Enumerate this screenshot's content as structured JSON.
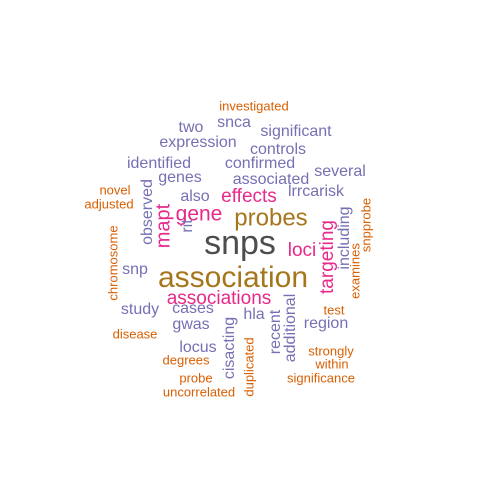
{
  "palette": {
    "dark_grey": "#4d4d4d",
    "gold": "#a6761d",
    "magenta": "#e7298a",
    "purple": "#7570b3",
    "orange": "#d95f02"
  },
  "words": [
    {
      "text": "investigated",
      "color": "orange"
    },
    {
      "text": "snca",
      "color": "purple"
    },
    {
      "text": "two",
      "color": "purple"
    },
    {
      "text": "significant",
      "color": "purple"
    },
    {
      "text": "expression",
      "color": "purple"
    },
    {
      "text": "controls",
      "color": "purple"
    },
    {
      "text": "identified",
      "color": "purple"
    },
    {
      "text": "confirmed",
      "color": "purple"
    },
    {
      "text": "several",
      "color": "purple"
    },
    {
      "text": "genes",
      "color": "purple"
    },
    {
      "text": "associated",
      "color": "purple"
    },
    {
      "text": "novel",
      "color": "orange"
    },
    {
      "text": "also",
      "color": "purple"
    },
    {
      "text": "effects",
      "color": "magenta"
    },
    {
      "text": "lrrcarisk",
      "color": "purple"
    },
    {
      "text": "adjusted",
      "color": "orange"
    },
    {
      "text": "observed",
      "color": "purple"
    },
    {
      "text": "gene",
      "color": "magenta"
    },
    {
      "text": "probes",
      "color": "gold"
    },
    {
      "text": "snpprobe",
      "color": "orange"
    },
    {
      "text": "mapt",
      "color": "magenta"
    },
    {
      "text": "rit",
      "color": "purple"
    },
    {
      "text": "including",
      "color": "purple"
    },
    {
      "text": "chromosome",
      "color": "orange"
    },
    {
      "text": "snps",
      "color": "dark_grey"
    },
    {
      "text": "loci",
      "color": "magenta"
    },
    {
      "text": "targeting",
      "color": "magenta"
    },
    {
      "text": "examines",
      "color": "orange"
    },
    {
      "text": "snp",
      "color": "purple"
    },
    {
      "text": "association",
      "color": "gold"
    },
    {
      "text": "associations",
      "color": "magenta"
    },
    {
      "text": "study",
      "color": "purple"
    },
    {
      "text": "cases",
      "color": "purple"
    },
    {
      "text": "hla",
      "color": "purple"
    },
    {
      "text": "test",
      "color": "orange"
    },
    {
      "text": "gwas",
      "color": "purple"
    },
    {
      "text": "region",
      "color": "purple"
    },
    {
      "text": "disease",
      "color": "orange"
    },
    {
      "text": "cisacting",
      "color": "purple"
    },
    {
      "text": "recent",
      "color": "purple"
    },
    {
      "text": "additional",
      "color": "purple"
    },
    {
      "text": "locus",
      "color": "purple"
    },
    {
      "text": "strongly",
      "color": "orange"
    },
    {
      "text": "degrees",
      "color": "orange"
    },
    {
      "text": "within",
      "color": "orange"
    },
    {
      "text": "probe",
      "color": "orange"
    },
    {
      "text": "significance",
      "color": "orange"
    },
    {
      "text": "uncorrelated",
      "color": "orange"
    },
    {
      "text": "duplicated",
      "color": "orange"
    }
  ]
}
